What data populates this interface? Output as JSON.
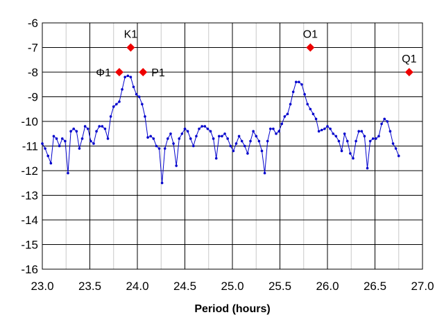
{
  "chart_data": {
    "type": "line",
    "title": "",
    "xlabel": "Period (hours)",
    "ylabel": "",
    "xlim": [
      23.0,
      27.0
    ],
    "ylim": [
      -16,
      -6
    ],
    "x_ticks": [
      "23.0",
      "23.5",
      "24.0",
      "24.5",
      "25.0",
      "25.5",
      "26.0",
      "26.5",
      "27.0"
    ],
    "y_ticks": [
      "-6",
      "-7",
      "-8",
      "-9",
      "-10",
      "-11",
      "-12",
      "-13",
      "-14",
      "-15",
      "-16"
    ],
    "x_tick_values": [
      23.0,
      23.5,
      24.0,
      24.5,
      25.0,
      25.5,
      26.0,
      26.5,
      27.0
    ],
    "y_tick_values": [
      -6,
      -7,
      -8,
      -9,
      -10,
      -11,
      -12,
      -13,
      -14,
      -15,
      -16
    ],
    "x_grid_major": [
      23.5,
      24.0,
      24.5,
      25.0,
      25.5,
      26.0,
      26.5
    ],
    "x_grid_minor": [
      23.25,
      23.75,
      24.25,
      24.75,
      25.25,
      25.75,
      26.25,
      26.75
    ],
    "y_grid": [
      -7,
      -8,
      -9,
      -10,
      -11,
      -12,
      -13,
      -14,
      -15
    ],
    "grid": true,
    "legend": "none",
    "series": [
      {
        "color": "#0000cc",
        "marker": "dot",
        "points": [
          [
            23.0,
            -10.9
          ],
          [
            23.03,
            -11.1
          ],
          [
            23.06,
            -11.4
          ],
          [
            23.09,
            -11.7
          ],
          [
            23.12,
            -10.6
          ],
          [
            23.15,
            -10.7
          ],
          [
            23.18,
            -11.0
          ],
          [
            23.21,
            -10.7
          ],
          [
            23.24,
            -10.8
          ],
          [
            23.27,
            -12.1
          ],
          [
            23.3,
            -10.4
          ],
          [
            23.33,
            -10.3
          ],
          [
            23.36,
            -10.4
          ],
          [
            23.39,
            -11.1
          ],
          [
            23.42,
            -10.7
          ],
          [
            23.45,
            -10.2
          ],
          [
            23.48,
            -10.3
          ],
          [
            23.51,
            -10.8
          ],
          [
            23.54,
            -10.9
          ],
          [
            23.57,
            -10.4
          ],
          [
            23.6,
            -10.2
          ],
          [
            23.63,
            -10.2
          ],
          [
            23.66,
            -10.3
          ],
          [
            23.69,
            -10.7
          ],
          [
            23.72,
            -9.8
          ],
          [
            23.75,
            -9.4
          ],
          [
            23.78,
            -9.3
          ],
          [
            23.81,
            -9.2
          ],
          [
            23.84,
            -8.7
          ],
          [
            23.87,
            -8.2
          ],
          [
            23.9,
            -8.15
          ],
          [
            23.93,
            -8.2
          ],
          [
            23.96,
            -8.6
          ],
          [
            23.99,
            -8.9
          ],
          [
            24.02,
            -9.0
          ],
          [
            24.05,
            -9.3
          ],
          [
            24.08,
            -9.8
          ],
          [
            24.11,
            -10.65
          ],
          [
            24.14,
            -10.6
          ],
          [
            24.17,
            -10.7
          ],
          [
            24.2,
            -11.0
          ],
          [
            24.23,
            -11.1
          ],
          [
            24.26,
            -12.5
          ],
          [
            24.29,
            -11.1
          ],
          [
            24.32,
            -10.7
          ],
          [
            24.35,
            -10.5
          ],
          [
            24.38,
            -10.9
          ],
          [
            24.41,
            -11.8
          ],
          [
            24.44,
            -10.7
          ],
          [
            24.47,
            -10.5
          ],
          [
            24.5,
            -10.3
          ],
          [
            24.53,
            -10.4
          ],
          [
            24.56,
            -10.7
          ],
          [
            24.59,
            -11.0
          ],
          [
            24.62,
            -10.6
          ],
          [
            24.65,
            -10.3
          ],
          [
            24.68,
            -10.2
          ],
          [
            24.71,
            -10.2
          ],
          [
            24.74,
            -10.3
          ],
          [
            24.77,
            -10.4
          ],
          [
            24.8,
            -10.7
          ],
          [
            24.83,
            -11.5
          ],
          [
            24.86,
            -10.6
          ],
          [
            24.89,
            -10.6
          ],
          [
            24.92,
            -10.5
          ],
          [
            24.95,
            -10.7
          ],
          [
            24.98,
            -11.0
          ],
          [
            25.01,
            -11.2
          ],
          [
            25.04,
            -10.9
          ],
          [
            25.07,
            -10.6
          ],
          [
            25.1,
            -10.8
          ],
          [
            25.13,
            -11.0
          ],
          [
            25.16,
            -11.3
          ],
          [
            25.19,
            -10.8
          ],
          [
            25.22,
            -10.4
          ],
          [
            25.25,
            -10.6
          ],
          [
            25.28,
            -10.8
          ],
          [
            25.31,
            -11.2
          ],
          [
            25.34,
            -12.1
          ],
          [
            25.37,
            -10.8
          ],
          [
            25.4,
            -10.3
          ],
          [
            25.43,
            -10.3
          ],
          [
            25.46,
            -10.5
          ],
          [
            25.49,
            -10.4
          ],
          [
            25.52,
            -10.1
          ],
          [
            25.55,
            -9.8
          ],
          [
            25.58,
            -9.7
          ],
          [
            25.61,
            -9.3
          ],
          [
            25.64,
            -8.8
          ],
          [
            25.67,
            -8.4
          ],
          [
            25.7,
            -8.4
          ],
          [
            25.73,
            -8.5
          ],
          [
            25.76,
            -8.9
          ],
          [
            25.79,
            -9.3
          ],
          [
            25.82,
            -9.5
          ],
          [
            25.85,
            -9.7
          ],
          [
            25.88,
            -9.9
          ],
          [
            25.91,
            -10.4
          ],
          [
            25.94,
            -10.35
          ],
          [
            25.97,
            -10.3
          ],
          [
            26.0,
            -10.2
          ],
          [
            26.03,
            -10.3
          ],
          [
            26.06,
            -10.5
          ],
          [
            26.09,
            -10.6
          ],
          [
            26.12,
            -10.8
          ],
          [
            26.15,
            -11.2
          ],
          [
            26.18,
            -10.5
          ],
          [
            26.21,
            -10.8
          ],
          [
            26.24,
            -11.3
          ],
          [
            26.27,
            -11.5
          ],
          [
            26.3,
            -10.8
          ],
          [
            26.33,
            -10.4
          ],
          [
            26.36,
            -10.4
          ],
          [
            26.39,
            -10.6
          ],
          [
            26.42,
            -11.9
          ],
          [
            26.45,
            -10.8
          ],
          [
            26.48,
            -10.7
          ],
          [
            26.51,
            -10.7
          ],
          [
            26.54,
            -10.6
          ],
          [
            26.57,
            -10.1
          ],
          [
            26.6,
            -9.9
          ],
          [
            26.63,
            -10.0
          ],
          [
            26.66,
            -10.4
          ],
          [
            26.69,
            -10.9
          ],
          [
            26.72,
            -11.1
          ],
          [
            26.75,
            -11.4
          ]
        ]
      }
    ],
    "annotations": [
      {
        "label": "K1",
        "x": 23.93,
        "y": -7,
        "color": "#ee0000",
        "label_pos": "above"
      },
      {
        "label": "O1",
        "x": 25.82,
        "y": -7,
        "color": "#ee0000",
        "label_pos": "above"
      },
      {
        "label": "Φ1",
        "x": 23.81,
        "y": -8,
        "color": "#ee0000",
        "label_pos": "left"
      },
      {
        "label": "P1",
        "x": 24.06,
        "y": -8,
        "color": "#ee0000",
        "label_pos": "right"
      },
      {
        "label": "Q1",
        "x": 26.86,
        "y": -8,
        "color": "#ee0000",
        "label_pos": "above"
      }
    ]
  }
}
